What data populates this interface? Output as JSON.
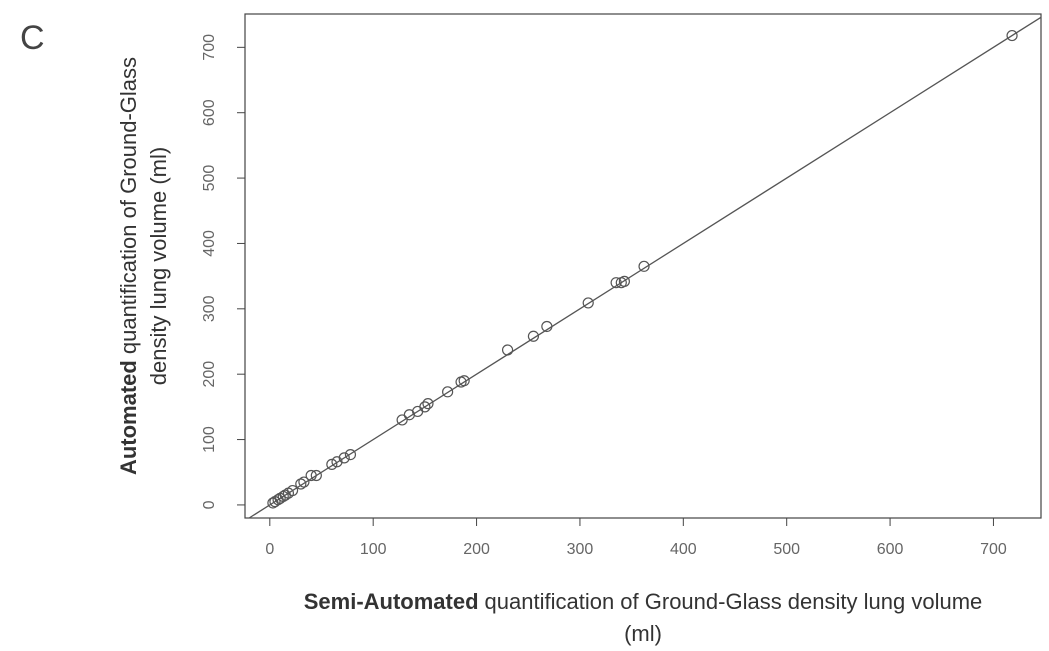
{
  "panel_label": "C",
  "chart_data": {
    "type": "scatter",
    "x_label": {
      "bold": "Semi-Automated",
      "lines": [
        "quantification of Ground-Glass density lung volume",
        "(ml)"
      ]
    },
    "y_label": {
      "bold": "Automated",
      "lines": [
        "quantification of Ground-Glass",
        "density lung volume (ml)"
      ]
    },
    "x": [
      3,
      5,
      8,
      10,
      13,
      15,
      18,
      22,
      30,
      33,
      40,
      45,
      60,
      65,
      72,
      78,
      128,
      135,
      143,
      150,
      153,
      172,
      185,
      188,
      230,
      255,
      268,
      308,
      335,
      340,
      343,
      362,
      718
    ],
    "y": [
      3,
      5,
      8,
      10,
      13,
      15,
      18,
      22,
      32,
      35,
      45,
      45,
      62,
      66,
      72,
      77,
      130,
      138,
      143,
      150,
      155,
      173,
      188,
      190,
      237,
      258,
      273,
      309,
      340,
      340,
      342,
      365,
      718
    ],
    "color": "#555555",
    "identity_line": true,
    "xlim": [
      -24,
      746
    ],
    "ylim": [
      -20,
      751
    ],
    "xticks": [
      0,
      100,
      200,
      300,
      400,
      500,
      600,
      700
    ],
    "yticks": [
      0,
      100,
      200,
      300,
      400,
      500,
      600,
      700
    ]
  }
}
